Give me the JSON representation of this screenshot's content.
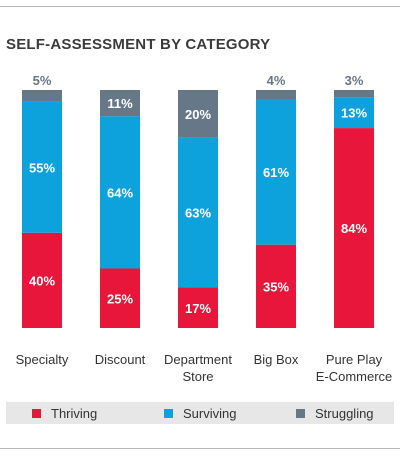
{
  "chart_data": {
    "type": "bar",
    "stacked": true,
    "title": "SELF-ASSESSMENT BY CATEGORY",
    "categories": [
      "Specialty",
      "Discount",
      "Department Store",
      "Big Box",
      "Pure Play E-Commerce"
    ],
    "category_lines": [
      [
        "Specialty"
      ],
      [
        "Discount"
      ],
      [
        "Department",
        "Store"
      ],
      [
        "Big Box"
      ],
      [
        "Pure Play",
        "E-Commerce"
      ]
    ],
    "series": [
      {
        "name": "Thriving",
        "color": "#e8163a",
        "values": [
          40,
          25,
          17,
          35,
          84
        ],
        "labels": [
          "40%",
          "25%",
          "17%",
          "35%",
          "84%"
        ]
      },
      {
        "name": "Surviving",
        "color": "#0ea2dc",
        "values": [
          55,
          64,
          63,
          61,
          13
        ],
        "labels": [
          "55%",
          "64%",
          "63%",
          "61%",
          "13%"
        ]
      },
      {
        "name": "Struggling",
        "color": "#667888",
        "values": [
          5,
          11,
          20,
          4,
          3
        ],
        "labels": [
          "5%",
          "11%",
          "20%",
          "4%",
          "3%"
        ]
      }
    ],
    "ylim": [
      0,
      100
    ],
    "grid": false,
    "legend_position": "bottom"
  }
}
